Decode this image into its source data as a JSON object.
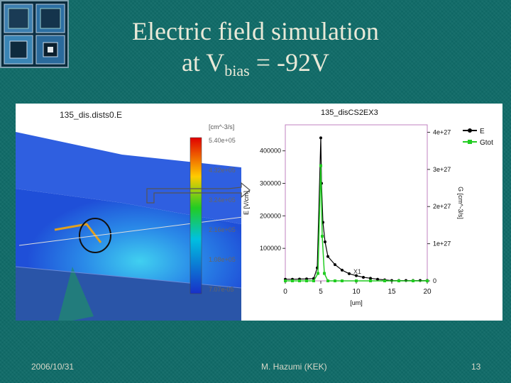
{
  "slide": {
    "title_line1": "Electric field simulation",
    "title_line2_prefix": "at V",
    "title_line2_sub": "bias",
    "title_line2_suffix": " = -92V"
  },
  "figure": {
    "left_panel_title": "135_dis.dists0.E",
    "colorbar_unit": "[cm^-3/s]",
    "colorbar_ticks": [
      "5.40e+05",
      "4.32e+05",
      "3.24e+05",
      "2.16e+05",
      "1.08e+05",
      "7.07e-05"
    ],
    "right_panel_title": "135_disCS2EX3",
    "chart_data": {
      "type": "line",
      "title": "135_disCS2EX3",
      "xlabel": "[um]",
      "ylabel_left": "E [V/cm]",
      "ylabel_right": "G [cm^-3/s]",
      "xlim": [
        0,
        20
      ],
      "ylim_left": [
        0,
        480000
      ],
      "ylim_right": [
        0,
        4.2e+27
      ],
      "x_ticks": [
        "0",
        "5",
        "10",
        "15",
        "20"
      ],
      "y_left_ticks": [
        "100000",
        "200000",
        "300000",
        "400000"
      ],
      "y_right_ticks": [
        "0",
        "1e+27",
        "2e+27",
        "3e+27",
        "4e+27"
      ],
      "legend": [
        "E",
        "Gtot"
      ],
      "legend_position": "top-right",
      "marker_label": "X1",
      "series": [
        {
          "name": "E",
          "color": "#000000",
          "x": [
            0,
            1,
            2,
            3,
            4,
            4.5,
            5,
            5.1,
            5.3,
            5.6,
            6,
            7,
            8,
            9,
            10,
            11,
            12,
            13,
            14,
            15,
            16,
            17,
            18,
            19,
            20
          ],
          "y": [
            5000,
            5000,
            5500,
            6000,
            7000,
            40000,
            440000,
            300000,
            180000,
            120000,
            75000,
            50000,
            33000,
            22000,
            16000,
            11000,
            8000,
            5000,
            3000,
            1000,
            1000,
            1000,
            1000,
            1000,
            1000
          ]
        },
        {
          "name": "Gtot",
          "color": "#22cc22",
          "x": [
            0,
            1,
            2,
            3,
            4,
            4.6,
            5,
            5.2,
            5.5,
            6,
            7,
            8,
            10,
            12,
            14,
            16,
            18,
            20
          ],
          "y": [
            0,
            0,
            0,
            0,
            0,
            2e+26,
            3.1e+27,
            1.2e+27,
            2e+26,
            0,
            0,
            0,
            0,
            0,
            0,
            0,
            0,
            0
          ]
        }
      ]
    }
  },
  "footer": {
    "date": "2006/10/31",
    "author": "M. Hazumi (KEK)",
    "page": "13"
  }
}
